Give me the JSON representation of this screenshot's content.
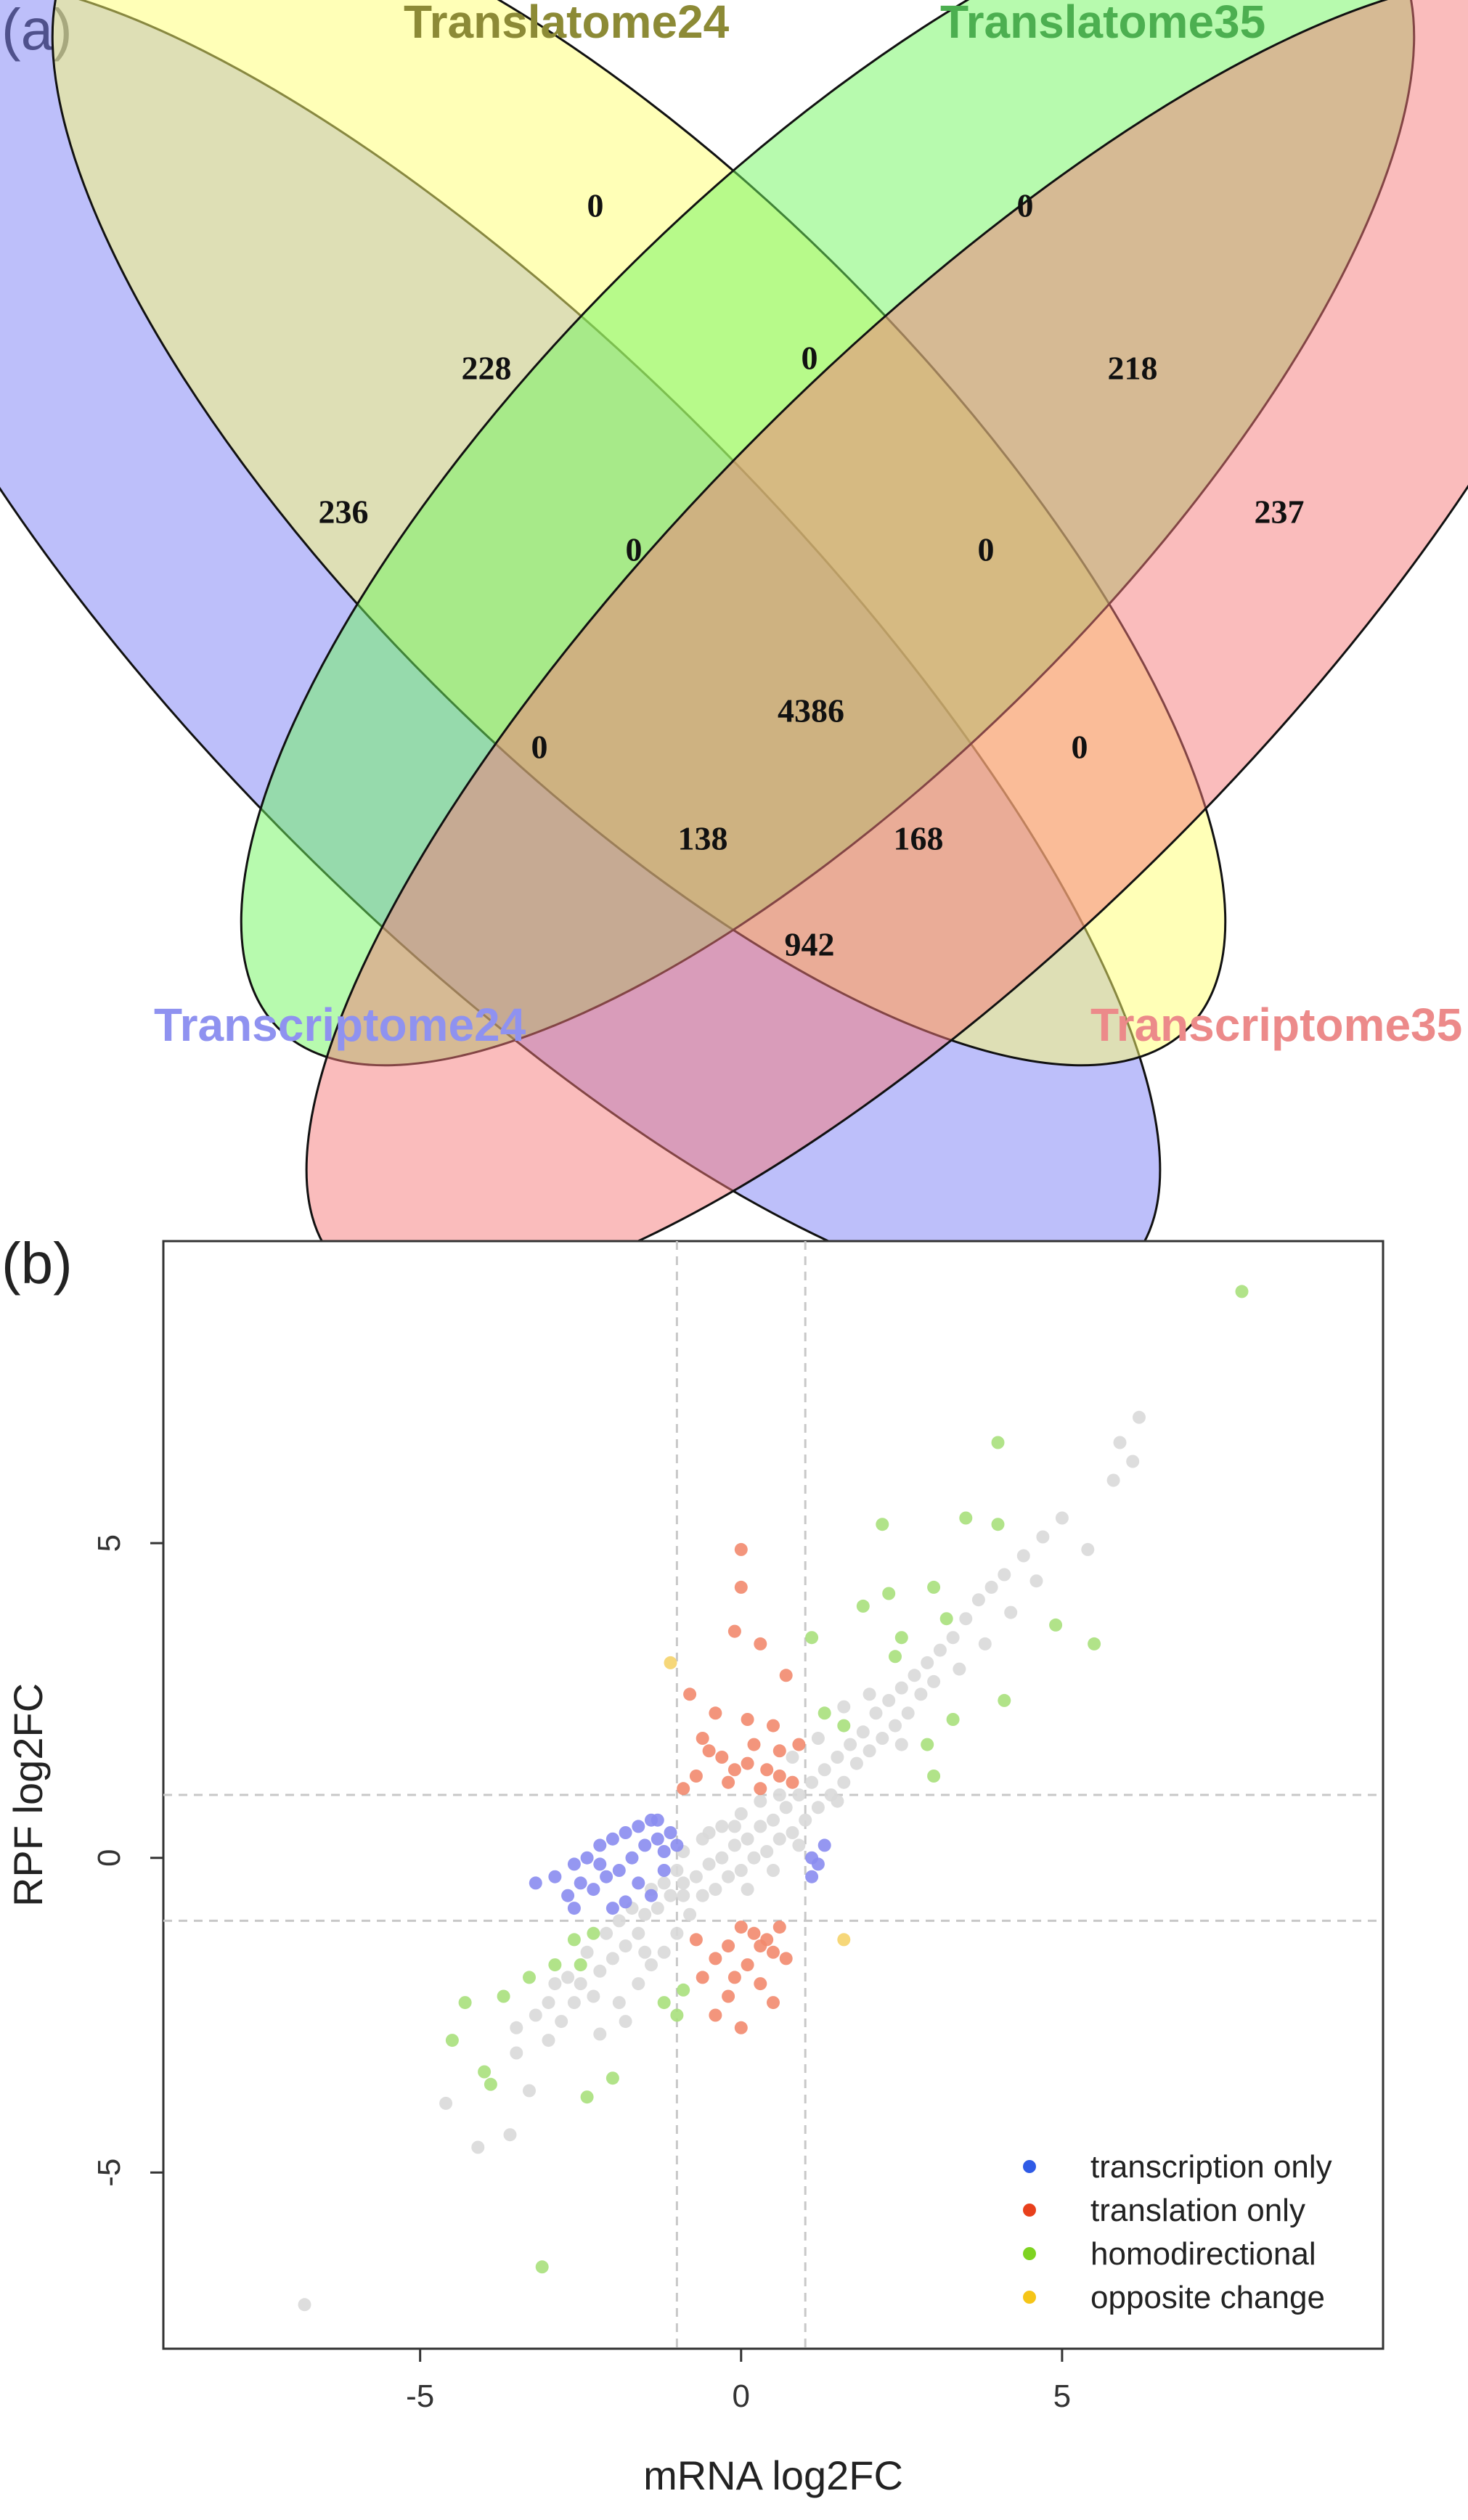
{
  "panel_a": {
    "label": "(a)",
    "sets": [
      {
        "name": "Transcriptome24",
        "color": "#7B7FF5"
      },
      {
        "name": "Translatome24",
        "color": "#FFFF70"
      },
      {
        "name": "Translatome35",
        "color": "#6FF55E"
      },
      {
        "name": "Transcriptome35",
        "color": "#F57A7A"
      }
    ],
    "label_colors": {
      "Transcriptome24": "#8F92F0",
      "Translatome24": "#8C8A36",
      "Translatome35": "#4CAF50",
      "Transcriptome35": "#EC8A8A"
    }
  },
  "panel_b": {
    "label": "(b)"
  },
  "chart_data": [
    {
      "type": "venn",
      "sets": [
        "Transcriptome24",
        "Translatome24",
        "Translatome35",
        "Transcriptome35"
      ],
      "regions": [
        {
          "sets": [
            "Transcriptome24"
          ],
          "value": 236
        },
        {
          "sets": [
            "Translatome24"
          ],
          "value": 0
        },
        {
          "sets": [
            "Translatome35"
          ],
          "value": 0
        },
        {
          "sets": [
            "Transcriptome35"
          ],
          "value": 237
        },
        {
          "sets": [
            "Transcriptome24",
            "Translatome24"
          ],
          "value": 228
        },
        {
          "sets": [
            "Translatome24",
            "Translatome35"
          ],
          "value": 0
        },
        {
          "sets": [
            "Translatome35",
            "Transcriptome35"
          ],
          "value": 218
        },
        {
          "sets": [
            "Transcriptome24",
            "Translatome24",
            "Translatome35"
          ],
          "value": 0
        },
        {
          "sets": [
            "Translatome24",
            "Translatome35",
            "Transcriptome35"
          ],
          "value": 0
        },
        {
          "sets": [
            "Transcriptome24",
            "Translatome35"
          ],
          "value": 0
        },
        {
          "sets": [
            "Translatome24",
            "Transcriptome35"
          ],
          "value": 0
        },
        {
          "sets": [
            "Transcriptome24",
            "Translatome24",
            "Translatome35",
            "Transcriptome35"
          ],
          "value": 4386
        },
        {
          "sets": [
            "Transcriptome24",
            "Translatome35",
            "Transcriptome35"
          ],
          "value": 138
        },
        {
          "sets": [
            "Transcriptome24",
            "Translatome24",
            "Transcriptome35"
          ],
          "value": 168
        },
        {
          "sets": [
            "Transcriptome24",
            "Transcriptome35"
          ],
          "value": 942
        }
      ]
    },
    {
      "type": "scatter",
      "xlabel": "mRNA log2FC",
      "ylabel": "RPF log2FC",
      "xlim": [
        -9,
        10
      ],
      "ylim": [
        -7.8,
        9.8
      ],
      "xticks": [
        -5,
        0,
        5
      ],
      "yticks": [
        -5,
        0,
        5
      ],
      "reference_lines": {
        "x": [
          -1,
          1
        ],
        "y": [
          -1,
          1
        ]
      },
      "legend_position": "bottom-right",
      "series": [
        {
          "name": "transcription only",
          "color": "#2F5BE6",
          "marker_color": "#8A8CF0",
          "points": [
            [
              -3.2,
              -0.4
            ],
            [
              -2.9,
              -0.3
            ],
            [
              -2.6,
              -0.1
            ],
            [
              -2.4,
              0.0
            ],
            [
              -2.2,
              0.2
            ],
            [
              -2.0,
              0.3
            ],
            [
              -1.8,
              0.4
            ],
            [
              -1.6,
              0.5
            ],
            [
              -1.4,
              0.6
            ],
            [
              -1.3,
              0.3
            ],
            [
              -1.2,
              0.1
            ],
            [
              -1.5,
              0.2
            ],
            [
              -1.7,
              0.0
            ],
            [
              -1.9,
              -0.2
            ],
            [
              -2.1,
              -0.3
            ],
            [
              -2.3,
              -0.5
            ],
            [
              -2.5,
              -0.4
            ],
            [
              -2.7,
              -0.6
            ],
            [
              -2.0,
              -0.8
            ],
            [
              -1.6,
              -0.4
            ],
            [
              -1.1,
              0.4
            ],
            [
              -1.2,
              -0.2
            ],
            [
              -1.4,
              -0.6
            ],
            [
              -1.8,
              -0.7
            ],
            [
              -2.2,
              -0.1
            ],
            [
              -1.0,
              0.2
            ],
            [
              -1.3,
              0.6
            ],
            [
              -2.6,
              -0.8
            ],
            [
              1.1,
              0.0
            ],
            [
              1.2,
              -0.1
            ],
            [
              1.3,
              0.2
            ],
            [
              1.1,
              -0.3
            ]
          ]
        },
        {
          "name": "translation only",
          "color": "#E8401C",
          "marker_color": "#F28A6E",
          "points": [
            [
              0.0,
              4.9
            ],
            [
              0.0,
              4.3
            ],
            [
              -0.1,
              3.6
            ],
            [
              0.3,
              3.4
            ],
            [
              0.7,
              2.9
            ],
            [
              -0.8,
              2.6
            ],
            [
              -0.4,
              2.3
            ],
            [
              0.1,
              2.2
            ],
            [
              0.5,
              2.1
            ],
            [
              -0.6,
              1.9
            ],
            [
              0.2,
              1.8
            ],
            [
              0.6,
              1.7
            ],
            [
              -0.3,
              1.6
            ],
            [
              0.1,
              1.5
            ],
            [
              0.4,
              1.4
            ],
            [
              -0.7,
              1.3
            ],
            [
              -0.2,
              1.2
            ],
            [
              0.3,
              1.1
            ],
            [
              0.8,
              1.2
            ],
            [
              -0.5,
              1.7
            ],
            [
              0.9,
              1.8
            ],
            [
              -0.1,
              1.4
            ],
            [
              0.6,
              1.3
            ],
            [
              -0.9,
              1.1
            ],
            [
              0.0,
              -1.1
            ],
            [
              0.2,
              -1.2
            ],
            [
              0.4,
              -1.3
            ],
            [
              -0.2,
              -1.4
            ],
            [
              0.5,
              -1.5
            ],
            [
              -0.4,
              -1.6
            ],
            [
              0.1,
              -1.7
            ],
            [
              0.7,
              -1.6
            ],
            [
              -0.6,
              -1.9
            ],
            [
              0.3,
              -2.0
            ],
            [
              -0.2,
              -2.2
            ],
            [
              0.5,
              -2.3
            ],
            [
              -0.4,
              -2.5
            ],
            [
              0.0,
              -2.7
            ],
            [
              0.6,
              -1.1
            ],
            [
              -0.7,
              -1.3
            ],
            [
              0.3,
              -1.4
            ],
            [
              -0.1,
              -1.9
            ]
          ]
        },
        {
          "name": "homodirectional",
          "color": "#7ED321",
          "marker_color": "#A8E07C",
          "points": [
            [
              7.8,
              9.0
            ],
            [
              4.0,
              6.6
            ],
            [
              3.5,
              5.4
            ],
            [
              4.0,
              5.3
            ],
            [
              2.2,
              5.3
            ],
            [
              2.3,
              4.2
            ],
            [
              1.9,
              4.0
            ],
            [
              3.2,
              3.8
            ],
            [
              3.0,
              4.3
            ],
            [
              2.5,
              3.5
            ],
            [
              4.9,
              3.7
            ],
            [
              5.5,
              3.4
            ],
            [
              1.1,
              3.5
            ],
            [
              4.1,
              2.5
            ],
            [
              2.9,
              1.8
            ],
            [
              3.0,
              1.3
            ],
            [
              1.3,
              2.3
            ],
            [
              1.6,
              2.1
            ],
            [
              -2.3,
              -1.2
            ],
            [
              -2.6,
              -1.3
            ],
            [
              -2.9,
              -1.7
            ],
            [
              -3.3,
              -1.9
            ],
            [
              -3.7,
              -2.2
            ],
            [
              -4.3,
              -2.3
            ],
            [
              -4.0,
              -3.4
            ],
            [
              -3.9,
              -3.6
            ],
            [
              -4.5,
              -2.9
            ],
            [
              -1.0,
              -2.5
            ],
            [
              -1.2,
              -2.3
            ],
            [
              -2.4,
              -3.8
            ],
            [
              -3.1,
              -6.5
            ],
            [
              -2.0,
              -3.5
            ],
            [
              -0.9,
              -2.1
            ],
            [
              2.4,
              3.2
            ],
            [
              3.3,
              2.2
            ],
            [
              -2.5,
              -1.7
            ]
          ]
        },
        {
          "name": "opposite change",
          "color": "#F5C518",
          "marker_color": "#F5D36A",
          "points": [
            [
              -1.1,
              3.1
            ],
            [
              1.6,
              -1.3
            ]
          ]
        },
        {
          "name": "",
          "color": "#D9D9D9",
          "marker_color": "#D9D9D9",
          "points": [
            [
              -6.8,
              -7.1
            ],
            [
              -4.6,
              -3.9
            ],
            [
              -4.1,
              -4.6
            ],
            [
              -3.6,
              -4.4
            ],
            [
              -3.5,
              -3.1
            ],
            [
              -3.3,
              -3.7
            ],
            [
              -3.0,
              -2.9
            ],
            [
              -2.8,
              -2.6
            ],
            [
              -2.6,
              -2.3
            ],
            [
              -2.5,
              -2.0
            ],
            [
              -2.2,
              -1.8
            ],
            [
              -2.0,
              -1.6
            ],
            [
              -1.8,
              -1.4
            ],
            [
              -1.6,
              -1.2
            ],
            [
              -1.5,
              -0.9
            ],
            [
              -1.3,
              -0.8
            ],
            [
              -1.1,
              -0.6
            ],
            [
              -0.9,
              -0.4
            ],
            [
              -0.7,
              -0.3
            ],
            [
              -0.5,
              -0.1
            ],
            [
              -0.3,
              0.0
            ],
            [
              -0.1,
              0.2
            ],
            [
              0.1,
              0.3
            ],
            [
              0.3,
              0.5
            ],
            [
              0.5,
              0.6
            ],
            [
              0.7,
              0.8
            ],
            [
              0.9,
              1.0
            ],
            [
              1.1,
              1.2
            ],
            [
              1.3,
              1.4
            ],
            [
              1.5,
              1.6
            ],
            [
              1.7,
              1.8
            ],
            [
              1.9,
              2.0
            ],
            [
              2.1,
              2.3
            ],
            [
              2.3,
              2.5
            ],
            [
              2.5,
              2.7
            ],
            [
              2.7,
              2.9
            ],
            [
              2.9,
              3.1
            ],
            [
              3.1,
              3.3
            ],
            [
              3.3,
              3.5
            ],
            [
              3.5,
              3.8
            ],
            [
              3.7,
              4.1
            ],
            [
              3.9,
              4.3
            ],
            [
              4.1,
              4.5
            ],
            [
              4.4,
              4.8
            ],
            [
              4.7,
              5.1
            ],
            [
              5.0,
              5.4
            ],
            [
              5.4,
              4.9
            ],
            [
              5.8,
              6.0
            ],
            [
              6.1,
              6.3
            ],
            [
              6.2,
              7.0
            ],
            [
              5.9,
              6.6
            ],
            [
              -0.8,
              -0.9
            ],
            [
              -0.6,
              -0.6
            ],
            [
              -0.4,
              -0.5
            ],
            [
              -0.2,
              -0.3
            ],
            [
              0.0,
              -0.2
            ],
            [
              0.2,
              0.0
            ],
            [
              0.4,
              0.1
            ],
            [
              0.6,
              0.3
            ],
            [
              0.8,
              0.4
            ],
            [
              1.0,
              0.6
            ],
            [
              1.2,
              0.8
            ],
            [
              -1.0,
              -0.2
            ],
            [
              -1.2,
              -0.4
            ],
            [
              -1.4,
              -0.5
            ],
            [
              -0.9,
              0.1
            ],
            [
              -0.6,
              0.3
            ],
            [
              -0.3,
              0.5
            ],
            [
              0.0,
              0.7
            ],
            [
              0.3,
              0.9
            ],
            [
              0.6,
              1.0
            ],
            [
              1.4,
              1.0
            ],
            [
              1.6,
              1.2
            ],
            [
              1.8,
              1.5
            ],
            [
              2.0,
              1.7
            ],
            [
              2.2,
              1.9
            ],
            [
              2.4,
              2.1
            ],
            [
              2.6,
              2.3
            ],
            [
              2.8,
              2.6
            ],
            [
              3.0,
              2.8
            ],
            [
              -2.4,
              -1.5
            ],
            [
              -2.1,
              -1.2
            ],
            [
              -1.9,
              -1.0
            ],
            [
              -1.7,
              -0.8
            ],
            [
              -2.7,
              -1.9
            ],
            [
              -3.0,
              -2.3
            ],
            [
              -2.9,
              -2.0
            ],
            [
              -1.9,
              -2.3
            ],
            [
              -1.6,
              -2.0
            ],
            [
              -1.4,
              -1.7
            ],
            [
              -1.2,
              -1.5
            ],
            [
              -1.0,
              -1.2
            ],
            [
              -3.5,
              -2.7
            ],
            [
              -3.2,
              -2.5
            ],
            [
              3.4,
              3.0
            ],
            [
              3.8,
              3.4
            ],
            [
              4.2,
              3.9
            ],
            [
              4.6,
              4.4
            ],
            [
              2.0,
              2.6
            ],
            [
              1.6,
              2.4
            ],
            [
              1.2,
              1.9
            ],
            [
              0.8,
              1.6
            ],
            [
              -1.8,
              -2.6
            ],
            [
              -2.2,
              -2.8
            ],
            [
              0.1,
              -0.5
            ],
            [
              -0.1,
              0.5
            ],
            [
              0.5,
              -0.2
            ],
            [
              -0.5,
              0.4
            ],
            [
              0.9,
              0.2
            ],
            [
              -0.9,
              -0.6
            ],
            [
              1.5,
              0.9
            ],
            [
              -1.5,
              -1.5
            ],
            [
              2.5,
              1.8
            ],
            [
              -2.3,
              -2.2
            ]
          ]
        }
      ]
    }
  ]
}
